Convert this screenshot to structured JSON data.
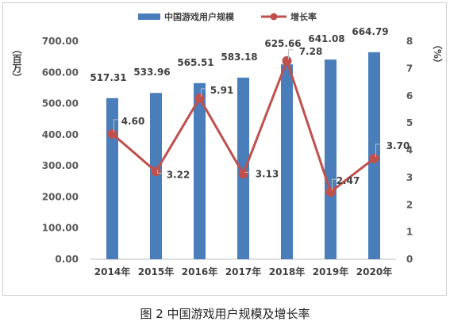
{
  "caption": "图 2  中国游戏用户规模及增长率",
  "chart_data": {
    "type": "bar+line",
    "categories": [
      "2014年",
      "2015年",
      "2016年",
      "2017年",
      "2018年",
      "2019年",
      "2020年"
    ],
    "series": [
      {
        "name": "中国游戏用户规模",
        "type": "bar",
        "axis": "left",
        "values": [
          517.31,
          533.96,
          565.51,
          583.18,
          625.66,
          641.08,
          664.79
        ],
        "labels": [
          "517.31",
          "533.96",
          "565.51",
          "583.18",
          "625.66",
          "641.08",
          "664.79"
        ],
        "color": "#4a7ebb"
      },
      {
        "name": "增长率",
        "type": "line",
        "axis": "right",
        "values": [
          4.6,
          3.22,
          5.91,
          3.13,
          7.28,
          2.47,
          3.7
        ],
        "labels": [
          "4.60",
          "3.22",
          "5.91",
          "3.13",
          "7.28",
          "2.47",
          "3.70"
        ],
        "color": "#c0504d"
      }
    ],
    "y_left": {
      "unit": "（百万）",
      "ylim": [
        0,
        700
      ],
      "ticks": [
        "0.00",
        "100.00",
        "200.00",
        "300.00",
        "400.00",
        "500.00",
        "600.00",
        "700.00"
      ]
    },
    "y_right": {
      "unit": "（%）",
      "ylim": [
        0,
        8
      ],
      "ticks": [
        "0",
        "1",
        "2",
        "3",
        "4",
        "5",
        "6",
        "7",
        "8"
      ]
    },
    "legend": {
      "placement": "top"
    },
    "grid": false
  }
}
